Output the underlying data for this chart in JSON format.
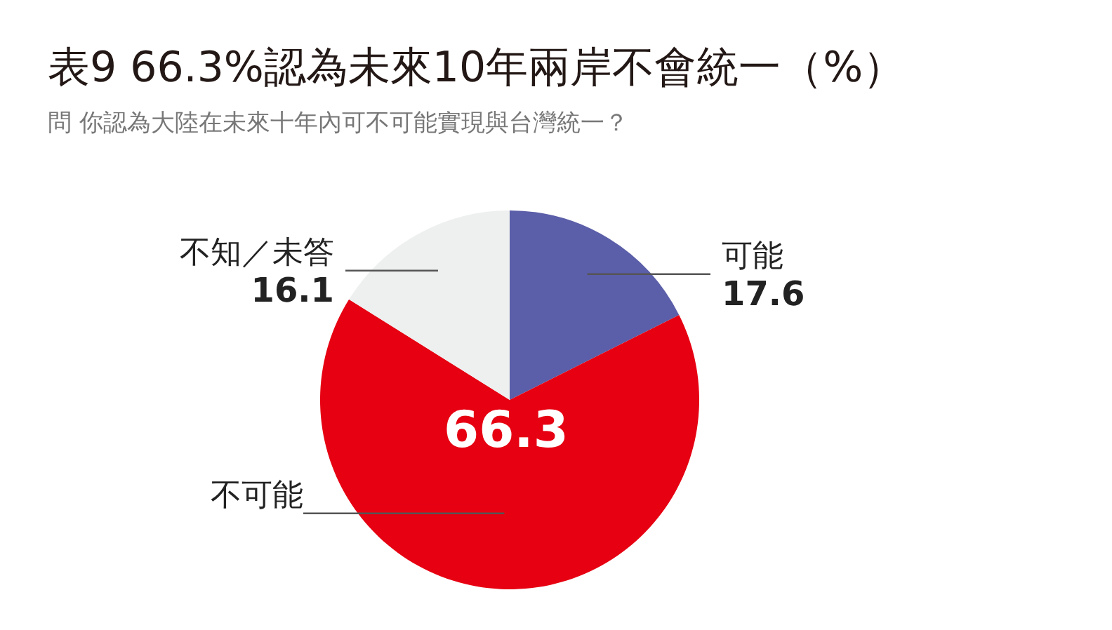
{
  "chart_data": {
    "type": "pie",
    "title": "表9 66.3%認為未來10年兩岸不會統一（%）",
    "subtitle": "問 你認為大陸在未來十年內可不可能實現與台灣統一？",
    "categories": [
      "可能",
      "不可能",
      "不知／未答"
    ],
    "values": [
      17.6,
      66.3,
      16.1
    ],
    "colors": [
      "#5b5ea8",
      "#e60012",
      "#eeefef"
    ],
    "data_labels": true
  }
}
